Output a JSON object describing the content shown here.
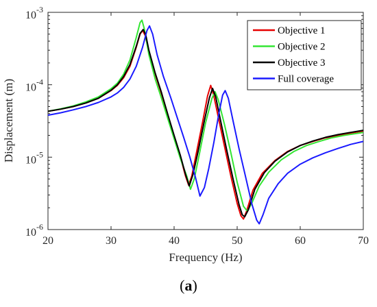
{
  "chart_data": {
    "type": "line",
    "xlabel": "Frequency (Hz)",
    "ylabel": "Displacement (m)",
    "xlim": [
      20,
      70
    ],
    "ylim": [
      1e-06,
      0.001
    ],
    "yscale": "log",
    "xticks": [
      20,
      30,
      40,
      50,
      60,
      70
    ],
    "yticks": [
      {
        "value": 1e-06,
        "base": "10",
        "exp": "-6"
      },
      {
        "value": 1e-05,
        "base": "10",
        "exp": "-5"
      },
      {
        "value": 0.0001,
        "base": "10",
        "exp": "-4"
      },
      {
        "value": 0.001,
        "base": "10",
        "exp": "-3"
      }
    ],
    "legend_position": "top-right",
    "grid": false,
    "series": [
      {
        "name": "Objective 1",
        "color": "#e60000",
        "points": [
          [
            20,
            4.3e-05
          ],
          [
            22,
            4.6e-05
          ],
          [
            24,
            5e-05
          ],
          [
            26,
            5.6e-05
          ],
          [
            28,
            6.5e-05
          ],
          [
            30,
            8.3e-05
          ],
          [
            31,
            9.8e-05
          ],
          [
            32,
            0.000125
          ],
          [
            33,
            0.00018
          ],
          [
            34,
            0.00033
          ],
          [
            34.6,
            0.0005
          ],
          [
            35.0,
            0.00056
          ],
          [
            35.4,
            0.00048
          ],
          [
            36,
            0.00029
          ],
          [
            37,
            0.00014
          ],
          [
            38,
            7.5e-05
          ],
          [
            39,
            3.8e-05
          ],
          [
            40,
            1.9e-05
          ],
          [
            41,
            1e-05
          ],
          [
            41.8,
            5.5e-06
          ],
          [
            42.3,
            4.1e-06
          ],
          [
            42.8,
            5.5e-06
          ],
          [
            43.5,
            1.1e-05
          ],
          [
            44.5,
            3e-05
          ],
          [
            45.3,
            7e-05
          ],
          [
            45.8,
            9.8e-05
          ],
          [
            46.3,
            7e-05
          ],
          [
            47,
            3.6e-05
          ],
          [
            48,
            1.4e-05
          ],
          [
            49,
            5.5e-06
          ],
          [
            50,
            2.3e-06
          ],
          [
            50.6,
            1.55e-06
          ],
          [
            51,
            1.4e-06
          ],
          [
            51.5,
            1.8e-06
          ],
          [
            52.5,
            3.5e-06
          ],
          [
            54,
            6e-06
          ],
          [
            56,
            9e-06
          ],
          [
            58,
            1.2e-05
          ],
          [
            60,
            1.45e-05
          ],
          [
            62,
            1.65e-05
          ],
          [
            64,
            1.85e-05
          ],
          [
            66,
            2e-05
          ],
          [
            68,
            2.15e-05
          ],
          [
            70,
            2.3e-05
          ]
        ]
      },
      {
        "name": "Objective 2",
        "color": "#33e633",
        "points": [
          [
            20,
            4.3e-05
          ],
          [
            22,
            4.65e-05
          ],
          [
            24,
            5.1e-05
          ],
          [
            26,
            5.8e-05
          ],
          [
            28,
            6.8e-05
          ],
          [
            30,
            8.8e-05
          ],
          [
            31,
            0.000105
          ],
          [
            32,
            0.00014
          ],
          [
            33,
            0.00022
          ],
          [
            34,
            0.00045
          ],
          [
            34.6,
            0.00072
          ],
          [
            34.9,
            0.00078
          ],
          [
            35.3,
            0.00058
          ],
          [
            36,
            0.00026
          ],
          [
            37,
            0.00012
          ],
          [
            38,
            6.5e-05
          ],
          [
            39,
            3.4e-05
          ],
          [
            40,
            1.8e-05
          ],
          [
            41,
            9.5e-06
          ],
          [
            42,
            5.5e-06
          ],
          [
            42.6,
            3.6e-06
          ],
          [
            43.2,
            5e-06
          ],
          [
            44,
            1.1e-05
          ],
          [
            45,
            3e-05
          ],
          [
            46,
            6.5e-05
          ],
          [
            46.5,
            8e-05
          ],
          [
            47,
            6.2e-05
          ],
          [
            48,
            2.8e-05
          ],
          [
            49,
            1.15e-05
          ],
          [
            50,
            4.5e-06
          ],
          [
            51,
            2.1e-06
          ],
          [
            51.6,
            1.8e-06
          ],
          [
            52.3,
            2.3e-06
          ],
          [
            53.5,
            4e-06
          ],
          [
            55,
            6.2e-06
          ],
          [
            57,
            9.2e-06
          ],
          [
            59,
            1.2e-05
          ],
          [
            61,
            1.45e-05
          ],
          [
            63,
            1.65e-05
          ],
          [
            65,
            1.85e-05
          ],
          [
            67,
            2e-05
          ],
          [
            70,
            2.2e-05
          ]
        ]
      },
      {
        "name": "Objective 3",
        "color": "#000000",
        "points": [
          [
            20,
            4.3e-05
          ],
          [
            22,
            4.6e-05
          ],
          [
            24,
            5e-05
          ],
          [
            26,
            5.6e-05
          ],
          [
            28,
            6.5e-05
          ],
          [
            30,
            8.4e-05
          ],
          [
            31,
            0.0001
          ],
          [
            32,
            0.00013
          ],
          [
            33,
            0.00019
          ],
          [
            34,
            0.00034
          ],
          [
            34.6,
            0.00051
          ],
          [
            35.1,
            0.00058
          ],
          [
            35.5,
            0.00049
          ],
          [
            36,
            0.0003
          ],
          [
            37,
            0.000145
          ],
          [
            38,
            7.8e-05
          ],
          [
            39,
            3.9e-05
          ],
          [
            40,
            2e-05
          ],
          [
            41,
            1.05e-05
          ],
          [
            41.8,
            5.8e-06
          ],
          [
            42.4,
            4e-06
          ],
          [
            43,
            5.8e-06
          ],
          [
            43.8,
            1.2e-05
          ],
          [
            44.8,
            3.2e-05
          ],
          [
            45.6,
            6.6e-05
          ],
          [
            46.1,
            8.9e-05
          ],
          [
            46.6,
            6.8e-05
          ],
          [
            47.3,
            3.4e-05
          ],
          [
            48.3,
            1.3e-05
          ],
          [
            49.3,
            5.2e-06
          ],
          [
            50.3,
            2.2e-06
          ],
          [
            50.8,
            1.6e-06
          ],
          [
            51.2,
            1.5e-06
          ],
          [
            51.8,
            1.9e-06
          ],
          [
            52.8,
            3.6e-06
          ],
          [
            54.3,
            6.1e-06
          ],
          [
            56,
            8.8e-06
          ],
          [
            58,
            1.18e-05
          ],
          [
            60,
            1.45e-05
          ],
          [
            62,
            1.67e-05
          ],
          [
            64,
            1.88e-05
          ],
          [
            66,
            2.05e-05
          ],
          [
            68,
            2.2e-05
          ],
          [
            70,
            2.35e-05
          ]
        ]
      },
      {
        "name": "Full coverage",
        "color": "#1a1aff",
        "points": [
          [
            20,
            3.8e-05
          ],
          [
            22,
            4.1e-05
          ],
          [
            24,
            4.5e-05
          ],
          [
            26,
            5e-05
          ],
          [
            28,
            5.7e-05
          ],
          [
            30,
            6.8e-05
          ],
          [
            31,
            7.7e-05
          ],
          [
            32,
            9.2e-05
          ],
          [
            33,
            0.00012
          ],
          [
            34,
            0.00018
          ],
          [
            35,
            0.00033
          ],
          [
            35.7,
            0.00056
          ],
          [
            36.1,
            0.00065
          ],
          [
            36.6,
            0.0005
          ],
          [
            37.3,
            0.00026
          ],
          [
            38.3,
            0.00013
          ],
          [
            39.5,
            6.5e-05
          ],
          [
            40.5,
            3.5e-05
          ],
          [
            41.5,
            1.9e-05
          ],
          [
            42.5,
            1e-05
          ],
          [
            43.4,
            5.2e-06
          ],
          [
            44.1,
            2.9e-06
          ],
          [
            44.8,
            3.8e-06
          ],
          [
            45.5,
            7e-06
          ],
          [
            46.3,
            1.6e-05
          ],
          [
            47.1,
            4e-05
          ],
          [
            47.7,
            7.2e-05
          ],
          [
            48.1,
            8.3e-05
          ],
          [
            48.6,
            6.5e-05
          ],
          [
            49.3,
            3.3e-05
          ],
          [
            50.3,
            1.3e-05
          ],
          [
            51.3,
            5.5e-06
          ],
          [
            52.3,
            2.3e-06
          ],
          [
            53.1,
            1.35e-06
          ],
          [
            53.5,
            1.2e-06
          ],
          [
            54.1,
            1.6e-06
          ],
          [
            55,
            2.7e-06
          ],
          [
            56.5,
            4.3e-06
          ],
          [
            58,
            6e-06
          ],
          [
            60,
            8e-06
          ],
          [
            62,
            9.8e-06
          ],
          [
            64,
            1.15e-05
          ],
          [
            66,
            1.32e-05
          ],
          [
            68,
            1.5e-05
          ],
          [
            70,
            1.65e-05
          ]
        ]
      }
    ]
  },
  "caption": {
    "label": "a"
  }
}
